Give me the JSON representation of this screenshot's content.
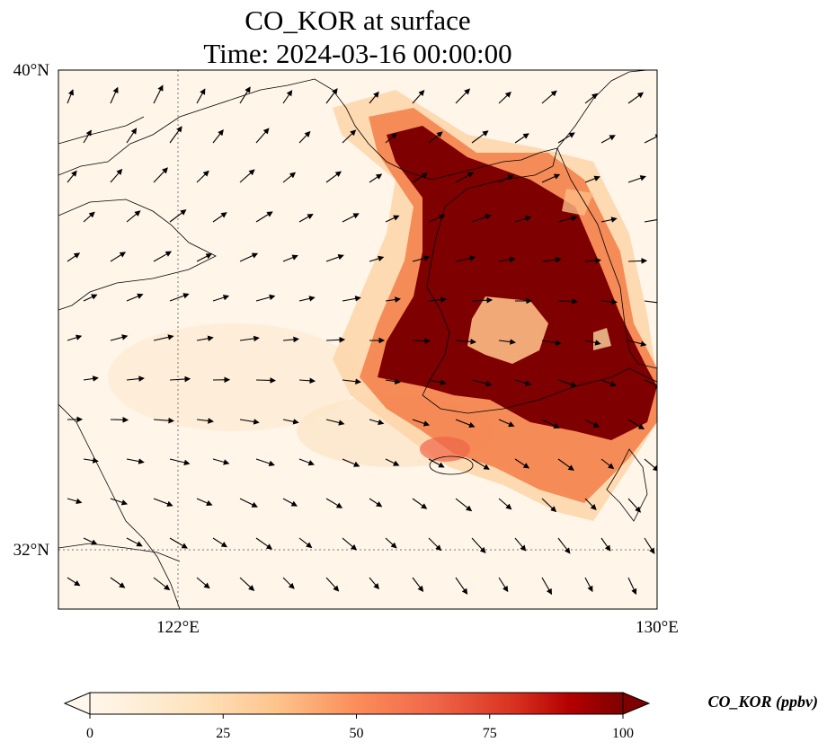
{
  "title": {
    "line1": "CO_KOR at surface",
    "line2": "Time: 2024-03-16 00:00:00"
  },
  "axes": {
    "lat_labels": [
      "40°N",
      "32°N"
    ],
    "lon_labels": [
      "122°E",
      "130°E"
    ],
    "lon_range": [
      120,
      130
    ],
    "lat_range": [
      31,
      40
    ],
    "gridlines": "dotted"
  },
  "colorbar": {
    "label": "CO_KOR (ppbv)",
    "ticks": [
      "0",
      "25",
      "50",
      "75",
      "100"
    ],
    "range": [
      0,
      100
    ],
    "colormap": "OrRd",
    "extend": "both"
  },
  "field": {
    "variable": "CO_KOR",
    "units": "ppbv",
    "level": "surface",
    "feature": "high concentration (>100 ppbv) over the Korean Peninsula and Yellow Sea, lower values over Chinese coast and Jeju"
  },
  "wind_vectors": {
    "shown": true,
    "pattern": "northward over west of domain, southeastward over East China Sea"
  }
}
